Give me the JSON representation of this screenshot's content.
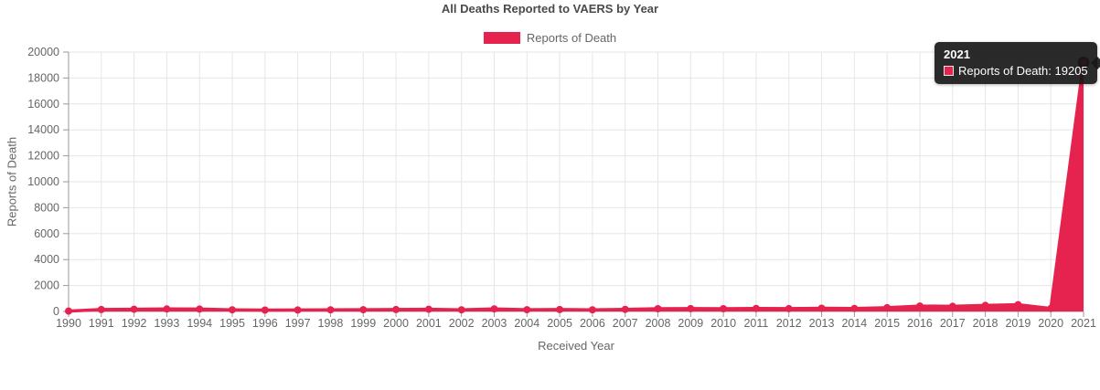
{
  "header": {
    "title": "All Deaths Reported to VAERS by Year"
  },
  "legend": {
    "items": [
      {
        "label": "Reports of Death",
        "color": "#E5234E"
      }
    ]
  },
  "axes": {
    "x_title": "Received Year",
    "y_title": "Reports of Death"
  },
  "colors": {
    "series": "#E5234E",
    "grid": "#e6e6e6",
    "axis": "#9a9a9a",
    "tick_label": "#666666"
  },
  "tooltip": {
    "title": "2021",
    "text": "Reports of Death: 19205",
    "swatch_color": "#E5234E"
  },
  "chart_data": {
    "type": "area",
    "title": "All Deaths Reported to VAERS by Year",
    "xlabel": "Received Year",
    "ylabel": "Reports of Death",
    "categories": [
      "1990",
      "1991",
      "1992",
      "1993",
      "1994",
      "1995",
      "1996",
      "1997",
      "1998",
      "1999",
      "2000",
      "2001",
      "2002",
      "2003",
      "2004",
      "2005",
      "2006",
      "2007",
      "2008",
      "2009",
      "2010",
      "2011",
      "2012",
      "2013",
      "2014",
      "2015",
      "2016",
      "2017",
      "2018",
      "2019",
      "2020",
      "2021"
    ],
    "series": [
      {
        "name": "Reports of Death",
        "color": "#E5234E",
        "values": [
          30,
          150,
          170,
          190,
          185,
          130,
          105,
          115,
          125,
          135,
          150,
          170,
          130,
          195,
          135,
          145,
          130,
          160,
          210,
          220,
          210,
          230,
          215,
          245,
          230,
          290,
          415,
          395,
          465,
          520,
          230,
          19205
        ]
      }
    ],
    "ylim": [
      0,
      20000
    ],
    "ytick_step": 2000,
    "grid": true,
    "legend_position": "top",
    "highlighted_point": {
      "category": "2021",
      "value": 19205
    }
  }
}
